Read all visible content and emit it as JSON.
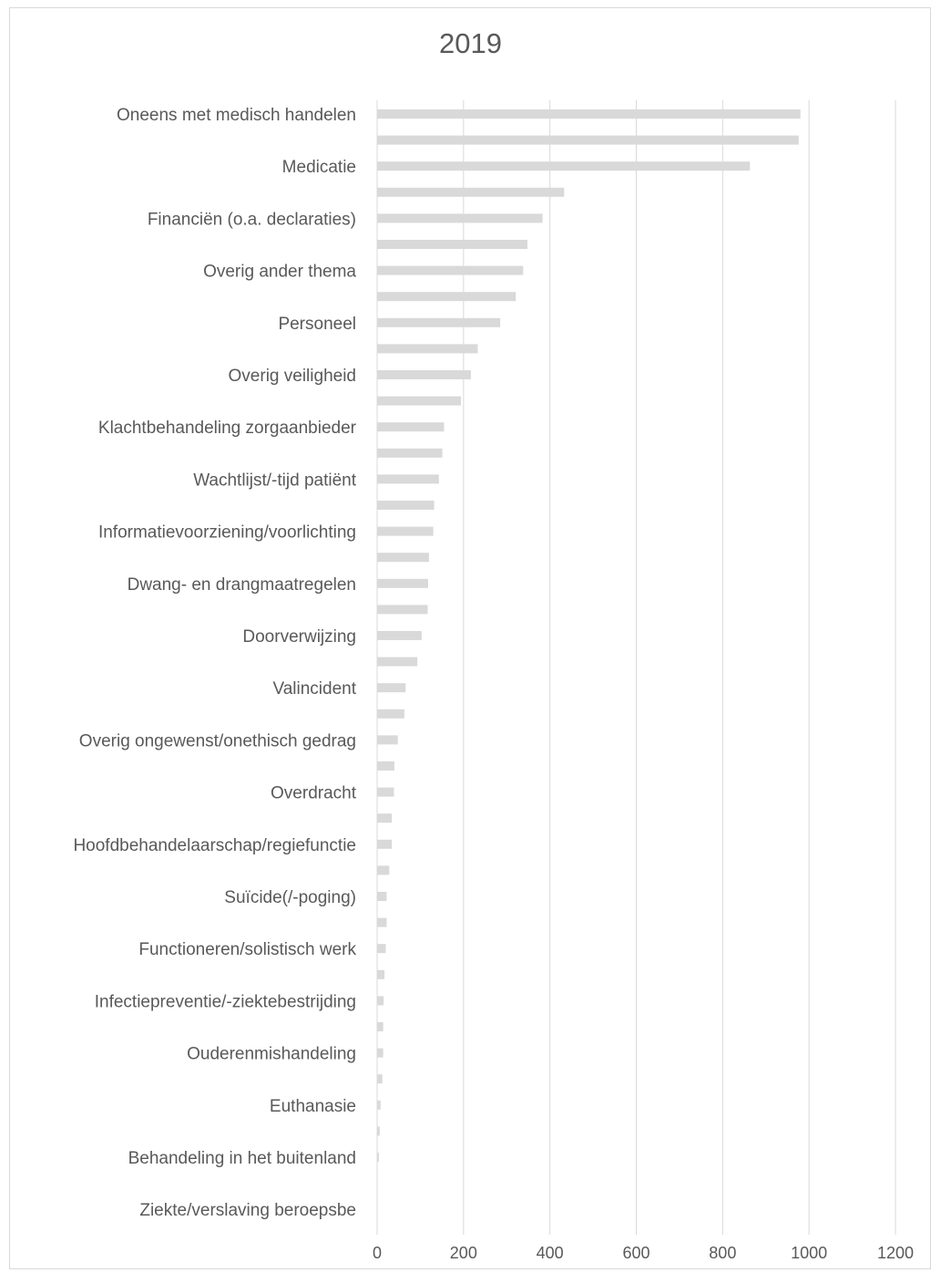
{
  "chart_data": {
    "type": "bar",
    "orientation": "horizontal",
    "title": "2019",
    "xlabel": "",
    "ylabel": "",
    "xlim": [
      0,
      1200
    ],
    "x_ticks": [
      "0",
      "200",
      "400",
      "600",
      "800",
      "1000",
      "1200"
    ],
    "grid": "vertical",
    "legend": "none",
    "bar_color": "#d9d9d9",
    "categories": [
      "Oneens met medisch handelen",
      "",
      "Medicatie",
      "",
      "Financiën (o.a. declaraties)",
      "",
      "Overig ander thema",
      "",
      "Personeel",
      "",
      "Overig veiligheid",
      "",
      "Klachtbehandeling zorgaanbieder",
      "",
      "Wachtlijst/-tijd patiënt",
      "",
      "Informatievoorziening/voorlichting",
      "",
      "Dwang- en drangmaatregelen",
      "",
      "Doorverwijzing",
      "",
      "Valincident",
      "",
      "Overig ongewenst/onethisch gedrag",
      "",
      "Overdracht",
      "",
      "Hoofdbehandelaarschap/regiefunctie",
      "",
      "Suïcide(/-poging)",
      "",
      "Functioneren/solistisch werk",
      "",
      "Infectiepreventie/-ziektebestrijding",
      "",
      "Ouderenmishandeling",
      "",
      "Euthanasie",
      "",
      "Behandeling in het buitenland",
      "",
      "Ziekte/verslaving beroepsbe"
    ],
    "values": [
      980,
      976,
      863,
      433,
      383,
      348,
      338,
      321,
      285,
      233,
      217,
      194,
      155,
      151,
      143,
      132,
      130,
      120,
      118,
      117,
      103,
      93,
      66,
      63,
      48,
      40,
      39,
      34,
      34,
      28,
      22,
      22,
      20,
      17,
      15,
      14,
      14,
      12,
      8,
      6,
      4,
      0,
      0
    ]
  }
}
